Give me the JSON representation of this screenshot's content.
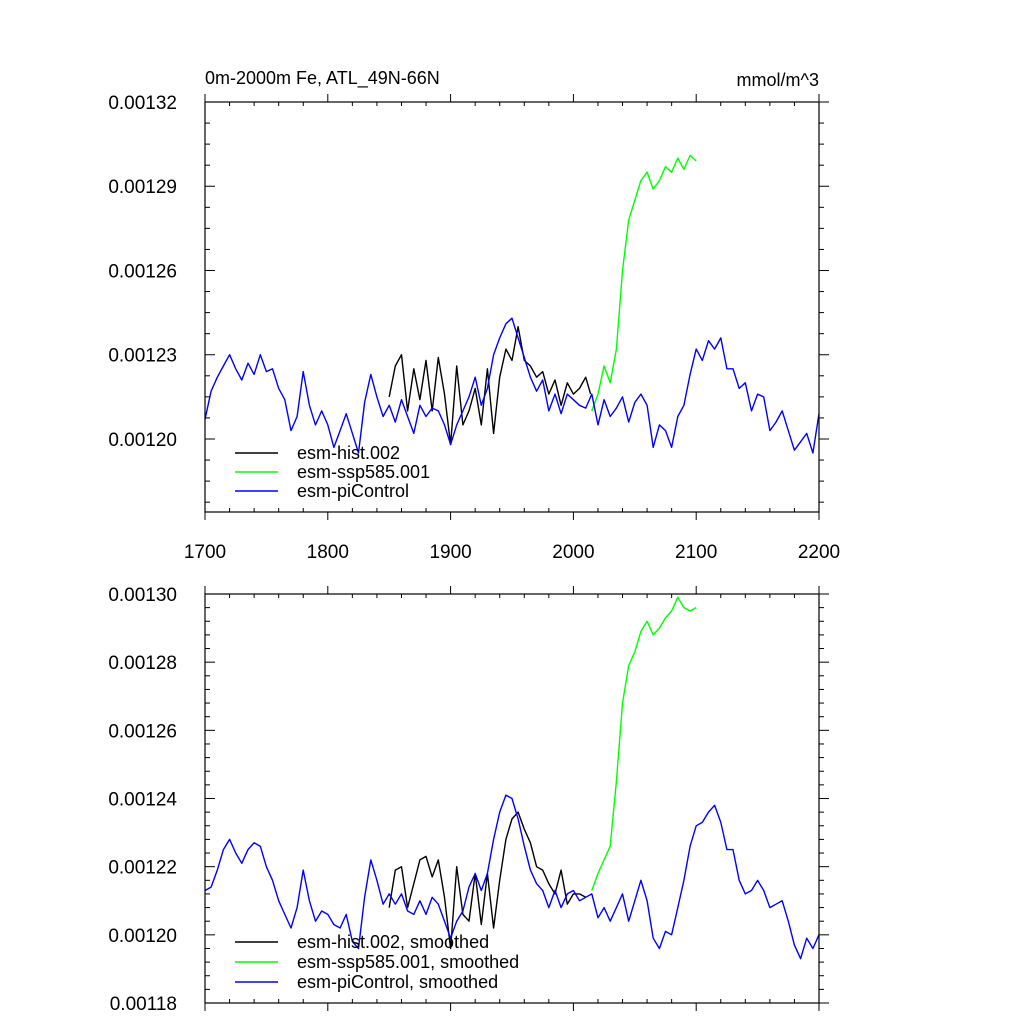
{
  "chart_data": [
    {
      "type": "line",
      "title": "0m-2000m Fe, ATL_49N-66N",
      "units": "mmol/m^3",
      "xlim": [
        1700,
        2200
      ],
      "ylim": [
        0.001174,
        0.00132
      ],
      "x_ticks": [
        1700,
        1800,
        1900,
        2000,
        2100,
        2200
      ],
      "x_tick_labels": [
        "1700",
        "1800",
        "1900",
        "2000",
        "2100",
        "2200"
      ],
      "y_ticks": [
        0.0012,
        0.00123,
        0.00126,
        0.00129,
        0.00132
      ],
      "y_tick_labels": [
        "0.00120",
        "0.00123",
        "0.00126",
        "0.00129",
        "0.00132"
      ],
      "legend_position": "bottom-left",
      "grid": false,
      "series": [
        {
          "name": "esm-hist.002",
          "color": "#000000",
          "x": [
            1850,
            1855,
            1860,
            1865,
            1870,
            1875,
            1880,
            1885,
            1890,
            1895,
            1900,
            1905,
            1910,
            1915,
            1920,
            1925,
            1930,
            1935,
            1940,
            1945,
            1950,
            1955,
            1960,
            1965,
            1970,
            1975,
            1980,
            1985,
            1990,
            1995,
            2000,
            2005,
            2010,
            2014
          ],
          "y": [
            0.001215,
            0.001226,
            0.00123,
            0.00121,
            0.001225,
            0.001214,
            0.001228,
            0.00121,
            0.001229,
            0.001216,
            0.001198,
            0.001226,
            0.001205,
            0.00121,
            0.001218,
            0.001205,
            0.001225,
            0.001202,
            0.001222,
            0.001232,
            0.001228,
            0.00124,
            0.001228,
            0.001226,
            0.001222,
            0.001224,
            0.001216,
            0.001221,
            0.001212,
            0.00122,
            0.001216,
            0.001218,
            0.001222,
            0.001216
          ]
        },
        {
          "name": "esm-ssp585.001",
          "color": "#00ff00",
          "x": [
            2015,
            2020,
            2025,
            2030,
            2035,
            2040,
            2045,
            2050,
            2055,
            2060,
            2065,
            2070,
            2075,
            2080,
            2085,
            2090,
            2095,
            2100
          ],
          "y": [
            0.00121,
            0.001216,
            0.001226,
            0.00122,
            0.001232,
            0.00126,
            0.001278,
            0.001285,
            0.001292,
            0.001295,
            0.001289,
            0.001292,
            0.001297,
            0.001295,
            0.0013,
            0.001296,
            0.001301,
            0.001299
          ]
        },
        {
          "name": "esm-piControl",
          "color": "#0000ff",
          "x": [
            1700,
            1705,
            1710,
            1715,
            1720,
            1725,
            1730,
            1735,
            1740,
            1745,
            1750,
            1755,
            1760,
            1765,
            1770,
            1775,
            1780,
            1785,
            1790,
            1795,
            1800,
            1805,
            1810,
            1815,
            1820,
            1825,
            1830,
            1835,
            1840,
            1845,
            1850,
            1855,
            1860,
            1865,
            1870,
            1875,
            1880,
            1885,
            1890,
            1895,
            1900,
            1905,
            1910,
            1915,
            1920,
            1925,
            1930,
            1935,
            1940,
            1945,
            1950,
            1955,
            1960,
            1965,
            1970,
            1975,
            1980,
            1985,
            1990,
            1995,
            2000,
            2005,
            2010,
            2015,
            2020,
            2025,
            2030,
            2035,
            2040,
            2045,
            2050,
            2055,
            2060,
            2065,
            2070,
            2075,
            2080,
            2085,
            2090,
            2095,
            2100,
            2105,
            2110,
            2115,
            2120,
            2125,
            2130,
            2135,
            2140,
            2145,
            2150,
            2155,
            2160,
            2165,
            2170,
            2175,
            2180,
            2185,
            2190,
            2195,
            2200
          ],
          "y": [
            0.001207,
            0.001217,
            0.001222,
            0.001226,
            0.00123,
            0.001225,
            0.001221,
            0.001227,
            0.001223,
            0.00123,
            0.001224,
            0.001225,
            0.001218,
            0.001214,
            0.001203,
            0.001208,
            0.001224,
            0.001212,
            0.001205,
            0.00121,
            0.001205,
            0.001197,
            0.001203,
            0.001209,
            0.001202,
            0.001195,
            0.001213,
            0.001223,
            0.001215,
            0.001208,
            0.001212,
            0.001206,
            0.001214,
            0.001208,
            0.001202,
            0.001212,
            0.001208,
            0.001211,
            0.00121,
            0.001205,
            0.001198,
            0.001205,
            0.00121,
            0.001215,
            0.001222,
            0.001212,
            0.001218,
            0.00123,
            0.001236,
            0.001241,
            0.001243,
            0.001236,
            0.001229,
            0.001222,
            0.001217,
            0.001221,
            0.00121,
            0.001216,
            0.001209,
            0.001216,
            0.001214,
            0.001212,
            0.001211,
            0.001216,
            0.001205,
            0.001214,
            0.001208,
            0.001211,
            0.001215,
            0.001206,
            0.001213,
            0.001216,
            0.001212,
            0.001197,
            0.001205,
            0.001203,
            0.001197,
            0.001208,
            0.001212,
            0.001223,
            0.001232,
            0.001228,
            0.001235,
            0.001232,
            0.001236,
            0.001225,
            0.001225,
            0.001218,
            0.00122,
            0.00121,
            0.001216,
            0.001215,
            0.001203,
            0.001206,
            0.00121,
            0.001203,
            0.001196,
            0.001199,
            0.001202,
            0.001195,
            0.001209
          ]
        }
      ]
    },
    {
      "type": "line",
      "xlim": [
        1700,
        2200
      ],
      "ylim": [
        0.00118,
        0.0013
      ],
      "x_ticks": [
        1700,
        1800,
        1900,
        2000,
        2100,
        2200
      ],
      "y_ticks": [
        0.00118,
        0.0012,
        0.00122,
        0.00124,
        0.00126,
        0.00128,
        0.0013
      ],
      "y_tick_labels": [
        "0.00118",
        "0.00120",
        "0.00122",
        "0.00124",
        "0.00126",
        "0.00128",
        "0.00130"
      ],
      "legend_position": "bottom-left",
      "grid": false,
      "series": [
        {
          "name": "esm-hist.002, smoothed",
          "color": "#000000",
          "x": [
            1850,
            1855,
            1860,
            1865,
            1870,
            1875,
            1880,
            1885,
            1890,
            1895,
            1900,
            1905,
            1910,
            1915,
            1920,
            1925,
            1930,
            1935,
            1940,
            1945,
            1950,
            1955,
            1960,
            1965,
            1970,
            1975,
            1980,
            1985,
            1990,
            1995,
            2000,
            2005,
            2010
          ],
          "y": [
            0.001208,
            0.001219,
            0.00122,
            0.001208,
            0.001215,
            0.001222,
            0.001223,
            0.001217,
            0.001222,
            0.001211,
            0.001196,
            0.00122,
            0.001206,
            0.001204,
            0.001218,
            0.001203,
            0.001218,
            0.001202,
            0.001216,
            0.001228,
            0.001234,
            0.001236,
            0.001231,
            0.001227,
            0.00122,
            0.001219,
            0.001215,
            0.001212,
            0.001219,
            0.001209,
            0.001212,
            0.001212,
            0.001211
          ]
        },
        {
          "name": "esm-ssp585.001, smoothed",
          "color": "#00ff00",
          "x": [
            2015,
            2020,
            2025,
            2030,
            2035,
            2040,
            2045,
            2050,
            2055,
            2060,
            2065,
            2070,
            2075,
            2080,
            2085,
            2090,
            2095,
            2100
          ],
          "y": [
            0.001213,
            0.001218,
            0.001222,
            0.001226,
            0.001245,
            0.001268,
            0.001279,
            0.001283,
            0.001289,
            0.001292,
            0.001288,
            0.00129,
            0.001293,
            0.001295,
            0.001299,
            0.001296,
            0.001295,
            0.001296
          ]
        },
        {
          "name": "esm-piControl, smoothed",
          "color": "#0000ff",
          "x": [
            1700,
            1705,
            1710,
            1715,
            1720,
            1725,
            1730,
            1735,
            1740,
            1745,
            1750,
            1755,
            1760,
            1765,
            1770,
            1775,
            1780,
            1785,
            1790,
            1795,
            1800,
            1805,
            1810,
            1815,
            1820,
            1825,
            1830,
            1835,
            1840,
            1845,
            1850,
            1855,
            1860,
            1865,
            1870,
            1875,
            1880,
            1885,
            1890,
            1895,
            1900,
            1905,
            1910,
            1915,
            1920,
            1925,
            1930,
            1935,
            1940,
            1945,
            1950,
            1955,
            1960,
            1965,
            1970,
            1975,
            1980,
            1985,
            1990,
            1995,
            2000,
            2005,
            2010,
            2015,
            2020,
            2025,
            2030,
            2035,
            2040,
            2045,
            2050,
            2055,
            2060,
            2065,
            2070,
            2075,
            2080,
            2085,
            2090,
            2095,
            2100,
            2105,
            2110,
            2115,
            2120,
            2125,
            2130,
            2135,
            2140,
            2145,
            2150,
            2155,
            2160,
            2165,
            2170,
            2175,
            2180,
            2185,
            2190,
            2195,
            2200
          ],
          "y": [
            0.001213,
            0.001214,
            0.001219,
            0.001225,
            0.001228,
            0.001224,
            0.001221,
            0.001225,
            0.001227,
            0.001226,
            0.00122,
            0.001216,
            0.00121,
            0.001206,
            0.001202,
            0.001208,
            0.001219,
            0.00121,
            0.001204,
            0.001207,
            0.001206,
            0.001203,
            0.001202,
            0.001206,
            0.001198,
            0.001196,
            0.001211,
            0.001222,
            0.001216,
            0.001209,
            0.001212,
            0.001209,
            0.001212,
            0.001207,
            0.001206,
            0.00121,
            0.001206,
            0.001211,
            0.001209,
            0.001204,
            0.001199,
            0.001204,
            0.001207,
            0.001214,
            0.001218,
            0.001213,
            0.001218,
            0.001228,
            0.001236,
            0.001241,
            0.00124,
            0.001234,
            0.001226,
            0.001219,
            0.001215,
            0.001213,
            0.001208,
            0.001213,
            0.001208,
            0.001212,
            0.001213,
            0.00121,
            0.001211,
            0.001212,
            0.001205,
            0.001208,
            0.001204,
            0.001208,
            0.001212,
            0.001204,
            0.00121,
            0.001216,
            0.00121,
            0.001199,
            0.001196,
            0.001201,
            0.0012,
            0.001208,
            0.001216,
            0.001226,
            0.001232,
            0.001233,
            0.001236,
            0.001238,
            0.001233,
            0.001225,
            0.001225,
            0.001216,
            0.001212,
            0.001213,
            0.001216,
            0.001213,
            0.001208,
            0.001209,
            0.00121,
            0.001204,
            0.001197,
            0.001193,
            0.001199,
            0.001196,
            0.0012
          ]
        }
      ]
    }
  ]
}
